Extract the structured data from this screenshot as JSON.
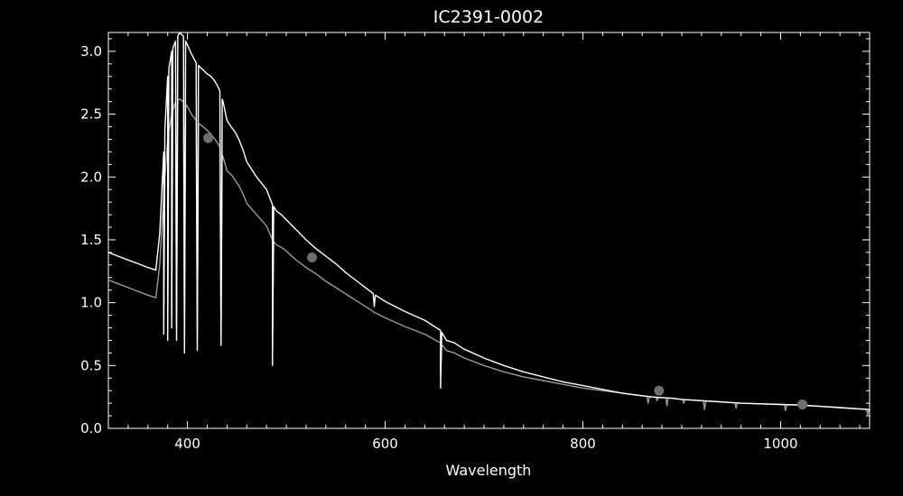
{
  "chart_data": {
    "type": "line",
    "title": "IC2391-0002",
    "xlabel": "Wavelength",
    "ylabel": "",
    "xlim": [
      320,
      1090
    ],
    "ylim": [
      0.0,
      3.15
    ],
    "x_ticks": [
      400,
      600,
      800,
      1000
    ],
    "x_tick_labels": [
      "400",
      "600",
      "800",
      "1000"
    ],
    "y_ticks": [
      0.0,
      0.5,
      1.0,
      1.5,
      2.0,
      2.5,
      3.0
    ],
    "y_tick_labels": [
      "0.0",
      "0.5",
      "1.0",
      "1.5",
      "2.0",
      "2.5",
      "3.0"
    ],
    "grid": false,
    "colors": {
      "background": "#000000",
      "axes": "#ffffff",
      "series1": "#ffffff",
      "series2": "#9a9a9a",
      "markers": "#6e6e6e"
    },
    "series": [
      {
        "x": [
          320,
          330,
          340,
          350,
          360,
          368,
          372,
          376,
          380,
          384,
          388,
          392,
          396,
          400,
          404,
          408,
          412,
          416,
          420,
          424,
          428,
          432,
          436,
          440,
          444,
          448,
          452,
          456,
          460,
          470,
          480,
          486,
          490,
          495,
          500,
          510,
          520,
          530,
          540,
          550,
          560,
          570,
          580,
          590,
          600,
          620,
          640,
          656,
          662,
          670,
          680,
          700,
          720,
          740,
          760,
          780,
          800,
          820,
          840,
          850,
          860,
          870,
          880,
          890,
          900,
          920,
          940,
          960,
          980,
          1000,
          1020,
          1040,
          1060,
          1080,
          1090
        ],
        "y": [
          1.4,
          1.37,
          1.34,
          1.31,
          1.28,
          1.26,
          1.55,
          2.2,
          2.8,
          3.0,
          3.08,
          3.15,
          3.12,
          3.05,
          2.98,
          2.92,
          2.88,
          2.85,
          2.82,
          2.8,
          2.76,
          2.7,
          2.6,
          2.45,
          2.4,
          2.36,
          2.3,
          2.22,
          2.12,
          2.0,
          1.9,
          1.78,
          1.73,
          1.7,
          1.66,
          1.58,
          1.5,
          1.43,
          1.37,
          1.31,
          1.24,
          1.18,
          1.12,
          1.06,
          1.01,
          0.93,
          0.86,
          0.78,
          0.7,
          0.68,
          0.63,
          0.56,
          0.5,
          0.45,
          0.41,
          0.37,
          0.34,
          0.31,
          0.28,
          0.27,
          0.26,
          0.25,
          0.245,
          0.24,
          0.23,
          0.22,
          0.21,
          0.2,
          0.195,
          0.19,
          0.185,
          0.175,
          0.165,
          0.155,
          0.15
        ],
        "dips": [
          [
            376,
            0.75
          ],
          [
            380,
            0.7
          ],
          [
            384,
            0.8
          ],
          [
            389,
            0.7
          ],
          [
            397,
            0.6
          ],
          [
            410,
            0.62
          ],
          [
            434,
            0.66
          ],
          [
            486,
            0.5
          ],
          [
            589,
            0.97
          ],
          [
            656,
            0.32
          ]
        ]
      },
      {
        "x": [
          320,
          330,
          340,
          350,
          360,
          368,
          372,
          376,
          380,
          384,
          388,
          392,
          396,
          400,
          404,
          408,
          412,
          416,
          420,
          424,
          428,
          432,
          436,
          440,
          444,
          448,
          452,
          456,
          460,
          470,
          480,
          486,
          490,
          495,
          500,
          510,
          520,
          530,
          540,
          550,
          560,
          570,
          580,
          590,
          600,
          620,
          640,
          656,
          662,
          670,
          680,
          700,
          720,
          740,
          760,
          780,
          800,
          820,
          840,
          850,
          860,
          870,
          880,
          890,
          900,
          920,
          940,
          960,
          980,
          1000,
          1020,
          1040,
          1060,
          1080,
          1090
        ],
        "y": [
          1.18,
          1.15,
          1.12,
          1.09,
          1.06,
          1.04,
          1.3,
          1.85,
          2.3,
          2.5,
          2.6,
          2.62,
          2.6,
          2.56,
          2.5,
          2.46,
          2.42,
          2.4,
          2.37,
          2.34,
          2.3,
          2.25,
          2.16,
          2.05,
          2.02,
          1.98,
          1.93,
          1.87,
          1.79,
          1.7,
          1.61,
          1.5,
          1.46,
          1.44,
          1.41,
          1.34,
          1.28,
          1.23,
          1.17,
          1.12,
          1.07,
          1.02,
          0.97,
          0.92,
          0.88,
          0.81,
          0.75,
          0.68,
          0.62,
          0.6,
          0.56,
          0.5,
          0.45,
          0.41,
          0.38,
          0.35,
          0.32,
          0.3,
          0.28,
          0.27,
          0.26,
          0.25,
          0.245,
          0.24,
          0.23,
          0.22,
          0.21,
          0.2,
          0.195,
          0.19,
          0.185,
          0.175,
          0.165,
          0.155,
          0.15
        ],
        "dips": [
          [
            376,
            0.85
          ],
          [
            380,
            0.8
          ],
          [
            384,
            0.9
          ],
          [
            389,
            0.8
          ],
          [
            397,
            0.7
          ],
          [
            410,
            0.72
          ],
          [
            434,
            0.78
          ],
          [
            486,
            0.6
          ],
          [
            589,
            0.92
          ],
          [
            656,
            0.45
          ],
          [
            866,
            0.2
          ],
          [
            875,
            0.22
          ],
          [
            885,
            0.18
          ],
          [
            902,
            0.2
          ],
          [
            923,
            0.15
          ],
          [
            955,
            0.16
          ],
          [
            1005,
            0.14
          ],
          [
            1088,
            0.11
          ]
        ]
      }
    ],
    "markers": {
      "x": [
        421,
        526,
        877,
        1022
      ],
      "y": [
        2.31,
        1.36,
        0.3,
        0.19
      ]
    }
  }
}
